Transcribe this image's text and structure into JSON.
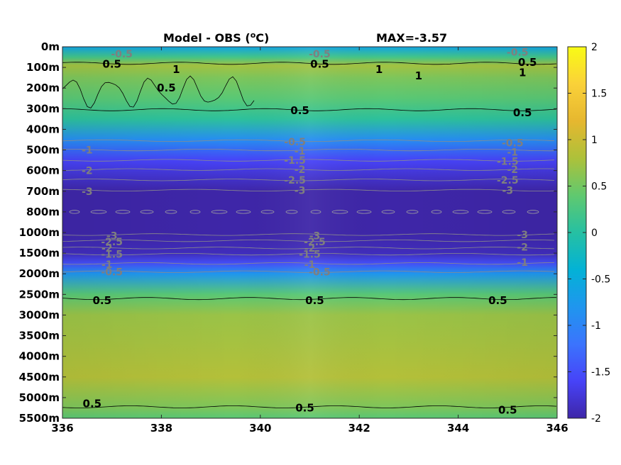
{
  "chart_data": {
    "type": "heatmap",
    "title": "Model - OBS (°C)",
    "title_parts": {
      "main": "Model - OBS (",
      "sup": "o",
      "end": "C)"
    },
    "max_label": "MAX=-3.57",
    "xlim": [
      336,
      346
    ],
    "x_ticks": [
      336,
      338,
      340,
      342,
      344,
      346
    ],
    "y_ticks": [
      "0m",
      "100m",
      "200m",
      "300m",
      "400m",
      "500m",
      "600m",
      "700m",
      "800m",
      "1000m",
      "1500m",
      "2000m",
      "2500m",
      "3000m",
      "3500m",
      "4000m",
      "4500m",
      "5000m",
      "5500m"
    ],
    "colorbar": {
      "range": [
        -2,
        2
      ],
      "ticks": [
        "2",
        "1.5",
        "1",
        "0.5",
        "0",
        "-0.5",
        "-1",
        "-1.5",
        "-2"
      ]
    },
    "colormap": [
      "#3e26a8",
      "#4743f8",
      "#3b74fd",
      "#1f96ee",
      "#03b2d6",
      "#26c0a2",
      "#60c96f",
      "#adc13a",
      "#e6b72f",
      "#fad139",
      "#f9fb15"
    ],
    "depth_profile": [
      {
        "level": 0,
        "value": -0.6
      },
      {
        "level": 0.5,
        "value": 0.2
      },
      {
        "level": 0.9,
        "value": 0.75
      },
      {
        "level": 1.5,
        "value": 0.55
      },
      {
        "level": 2.5,
        "value": 0.35
      },
      {
        "level": 3.5,
        "value": 0.05
      },
      {
        "level": 4.5,
        "value": -0.9
      },
      {
        "level": 5.5,
        "value": -1.6
      },
      {
        "level": 7,
        "value": -2.2
      },
      {
        "level": 9,
        "value": -2.4
      },
      {
        "level": 10,
        "value": -1.9
      },
      {
        "level": 10.5,
        "value": -1.5
      },
      {
        "level": 11,
        "value": -0.8
      },
      {
        "level": 12,
        "value": 0.35
      },
      {
        "level": 13,
        "value": 0.7
      },
      {
        "level": 16,
        "value": 0.85
      },
      {
        "level": 17.5,
        "value": 0.55
      },
      {
        "level": 18,
        "value": 0.35
      }
    ],
    "contour_labels_black": [
      {
        "text": "0.5",
        "x": 337.0,
        "level": 0.85
      },
      {
        "text": "1",
        "x": 338.3,
        "level": 1.1
      },
      {
        "text": "0.5",
        "x": 338.1,
        "level": 2.0
      },
      {
        "text": "0.5",
        "x": 341.2,
        "level": 0.85
      },
      {
        "text": "1",
        "x": 342.4,
        "level": 1.1
      },
      {
        "text": "1",
        "x": 343.2,
        "level": 1.4
      },
      {
        "text": "0.5",
        "x": 345.4,
        "level": 0.75
      },
      {
        "text": "1",
        "x": 345.3,
        "level": 1.25
      },
      {
        "text": "0.5",
        "x": 340.8,
        "level": 3.1
      },
      {
        "text": "0.5",
        "x": 345.3,
        "level": 3.2
      },
      {
        "text": "0.5",
        "x": 336.8,
        "level": 12.3
      },
      {
        "text": "0.5",
        "x": 341.1,
        "level": 12.3
      },
      {
        "text": "0.5",
        "x": 344.8,
        "level": 12.3
      },
      {
        "text": "0.5",
        "x": 336.6,
        "level": 17.3
      },
      {
        "text": "0.5",
        "x": 340.9,
        "level": 17.5
      },
      {
        "text": "0.5",
        "x": 345.0,
        "level": 17.6
      }
    ],
    "contour_labels_gray": [
      {
        "text": "-0.5",
        "x": 337.2,
        "level": 0.35
      },
      {
        "text": "-0.5",
        "x": 341.2,
        "level": 0.35
      },
      {
        "text": "-0.5",
        "x": 345.2,
        "level": 0.25
      },
      {
        "text": "-0.5",
        "x": 340.7,
        "level": 4.6
      },
      {
        "text": "-1",
        "x": 340.8,
        "level": 5.05
      },
      {
        "text": "-1.5",
        "x": 340.7,
        "level": 5.5
      },
      {
        "text": "-2",
        "x": 340.8,
        "level": 5.95
      },
      {
        "text": "-2.5",
        "x": 340.7,
        "level": 6.45
      },
      {
        "text": "-3",
        "x": 340.8,
        "level": 6.95
      },
      {
        "text": "-0.5",
        "x": 345.1,
        "level": 4.65
      },
      {
        "text": "-1",
        "x": 345.1,
        "level": 5.1
      },
      {
        "text": "-1.5",
        "x": 345.0,
        "level": 5.55
      },
      {
        "text": "-2",
        "x": 345.1,
        "level": 5.95
      },
      {
        "text": "-2.5",
        "x": 345.0,
        "level": 6.45
      },
      {
        "text": "-3",
        "x": 345.0,
        "level": 6.95
      },
      {
        "text": "-1",
        "x": 336.5,
        "level": 5.0
      },
      {
        "text": "-2",
        "x": 336.5,
        "level": 6.0
      },
      {
        "text": "-3",
        "x": 336.5,
        "level": 7.0
      },
      {
        "text": "-3",
        "x": 337.0,
        "level": 9.15
      },
      {
        "text": "-2.5",
        "x": 337.0,
        "level": 9.45
      },
      {
        "text": "-2",
        "x": 336.9,
        "level": 9.75
      },
      {
        "text": "-1.5",
        "x": 337.0,
        "level": 10.05
      },
      {
        "text": "-1",
        "x": 336.9,
        "level": 10.55
      },
      {
        "text": "-0.5",
        "x": 337.0,
        "level": 10.9
      },
      {
        "text": "-3",
        "x": 341.1,
        "level": 9.15
      },
      {
        "text": "-2.5",
        "x": 341.1,
        "level": 9.45
      },
      {
        "text": "-2",
        "x": 341.0,
        "level": 9.75
      },
      {
        "text": "-1.5",
        "x": 341.0,
        "level": 10.05
      },
      {
        "text": "-1",
        "x": 341.0,
        "level": 10.55
      },
      {
        "text": "-0.5",
        "x": 341.2,
        "level": 10.9
      },
      {
        "text": "-3",
        "x": 345.3,
        "level": 9.1
      },
      {
        "text": "-2",
        "x": 345.3,
        "level": 9.7
      },
      {
        "text": "-1",
        "x": 345.3,
        "level": 10.45
      }
    ]
  }
}
